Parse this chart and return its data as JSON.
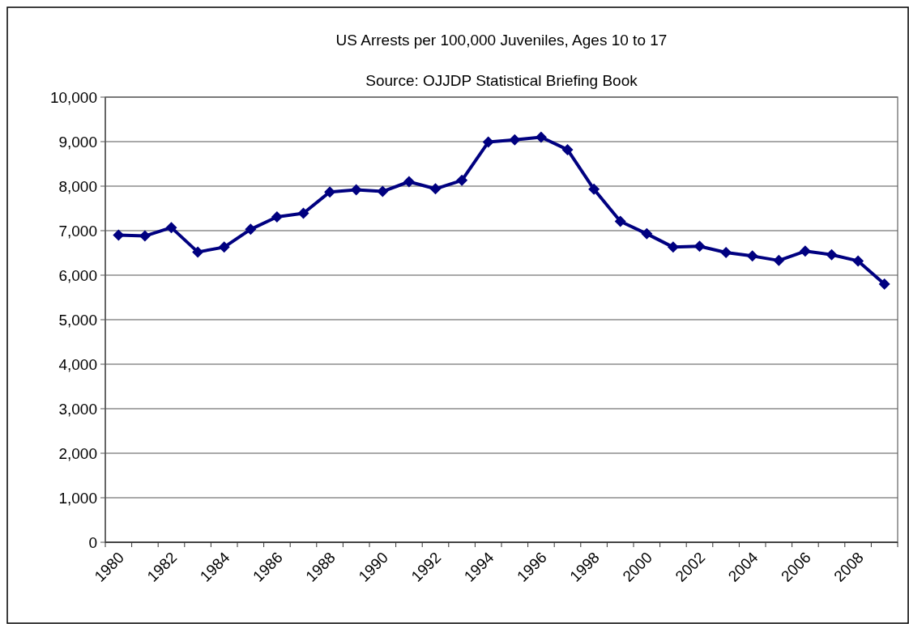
{
  "chart_data": {
    "type": "line",
    "title": "US Arrests per 100,000 Juveniles, Ages 10 to 17",
    "subtitle": "Source: OJJDP Statistical Briefing Book",
    "categories": [
      "1980",
      null,
      "1982",
      null,
      "1984",
      null,
      "1986",
      null,
      "1988",
      null,
      "1990",
      null,
      "1992",
      null,
      "1994",
      null,
      "1996",
      null,
      "1998",
      null,
      "2000",
      null,
      "2002",
      null,
      "2004",
      null,
      "2006",
      null,
      "2008",
      null
    ],
    "series": [
      {
        "color": "#000080",
        "values": [
          6900,
          6880,
          7070,
          6520,
          6630,
          7030,
          7310,
          7390,
          7870,
          7920,
          7880,
          8100,
          7940,
          8130,
          8990,
          9040,
          9100,
          8820,
          7930,
          7210,
          6930,
          6630,
          6650,
          6510,
          6430,
          6330,
          6540,
          6460,
          6320,
          5800
        ]
      }
    ],
    "ylim": [
      0,
      10000
    ],
    "yticks": [
      {
        "value": 0,
        "label": "0"
      },
      {
        "value": 1000,
        "label": "1,000"
      },
      {
        "value": 2000,
        "label": "2,000"
      },
      {
        "value": 3000,
        "label": "3,000"
      },
      {
        "value": 4000,
        "label": "4,000"
      },
      {
        "value": 5000,
        "label": "5,000"
      },
      {
        "value": 6000,
        "label": "6,000"
      },
      {
        "value": 7000,
        "label": "7,000"
      },
      {
        "value": 8000,
        "label": "8,000"
      },
      {
        "value": 9000,
        "label": "9,000"
      },
      {
        "value": 10000,
        "label": "10,000"
      }
    ],
    "grid": "y",
    "marker": "diamond",
    "line_style": "solid"
  }
}
